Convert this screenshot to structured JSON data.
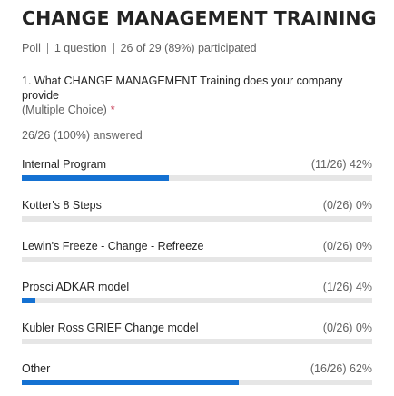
{
  "poll": {
    "title": "CHANGE MANAGEMENT TRAINING",
    "kind": "Poll",
    "question_count": "1 question",
    "participation": "26 of 29 (89%) participated"
  },
  "question": {
    "text": "1. What CHANGE MANAGEMENT Training does your company provide",
    "type": "(Multiple Choice)",
    "required_mark": "*",
    "answered": "26/26 (100%) answered"
  },
  "options": [
    {
      "label": "Internal Program",
      "stat": "(11/26) 42%",
      "fraction": 0.42
    },
    {
      "label": "Kotter's 8 Steps",
      "stat": "(0/26) 0%",
      "fraction": 0
    },
    {
      "label": "Lewin's Freeze - Change - Refreeze",
      "stat": "(0/26) 0%",
      "fraction": 0
    },
    {
      "label": "Prosci ADKAR model",
      "stat": "(1/26) 4%",
      "fraction": 0.04
    },
    {
      "label": "Kubler Ross GRIEF Change model",
      "stat": "(0/26) 0%",
      "fraction": 0
    },
    {
      "label": "Other",
      "stat": "(16/26) 62%",
      "fraction": 0.62
    }
  ],
  "colors": {
    "bar_fill": "#1471d2",
    "bar_track": "#e6e6e6",
    "required": "#c4314b"
  }
}
